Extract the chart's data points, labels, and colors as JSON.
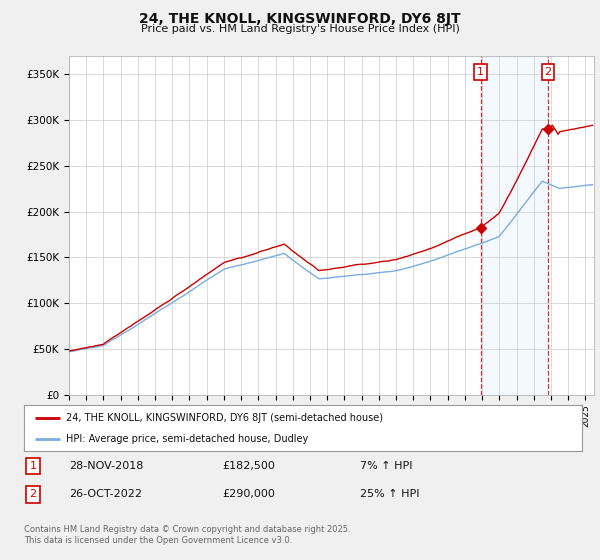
{
  "title": "24, THE KNOLL, KINGSWINFORD, DY6 8JT",
  "subtitle": "Price paid vs. HM Land Registry's House Price Index (HPI)",
  "ylabel_ticks": [
    "£0",
    "£50K",
    "£100K",
    "£150K",
    "£200K",
    "£250K",
    "£300K",
    "£350K"
  ],
  "ytick_vals": [
    0,
    50000,
    100000,
    150000,
    200000,
    250000,
    300000,
    350000
  ],
  "ylim": [
    0,
    370000
  ],
  "xlim_start": 1995,
  "xlim_end": 2025.5,
  "sale1_year": 2018.92,
  "sale1_price": 182500,
  "sale2_year": 2022.82,
  "sale2_price": 290000,
  "sale1_label": "1",
  "sale2_label": "2",
  "sale1_date": "28-NOV-2018",
  "sale1_amount": "£182,500",
  "sale1_hpi": "7% ↑ HPI",
  "sale2_date": "26-OCT-2022",
  "sale2_amount": "£290,000",
  "sale2_hpi": "25% ↑ HPI",
  "line1_color": "#cc0000",
  "line2_color": "#7aade0",
  "shaded_color": "#ddeeff",
  "vline_color": "#cc0000",
  "legend1_label": "24, THE KNOLL, KINGSWINFORD, DY6 8JT (semi-detached house)",
  "legend2_label": "HPI: Average price, semi-detached house, Dudley",
  "footer": "Contains HM Land Registry data © Crown copyright and database right 2025.\nThis data is licensed under the Open Government Licence v3.0.",
  "background_color": "#f0f0f0",
  "plot_bg_color": "#ffffff"
}
